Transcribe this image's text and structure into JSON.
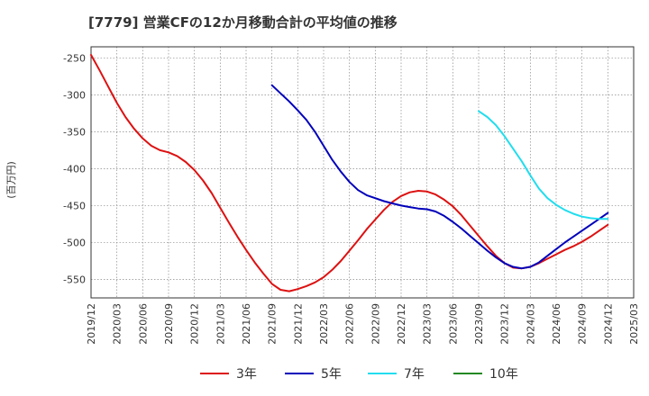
{
  "chart_data": {
    "type": "line",
    "title": "[7779]  営業CFの12か月移動合計の平均値の推移",
    "ylabel": "(百万円)",
    "xlabel": "",
    "ylim": [
      -575,
      -235
    ],
    "yticks": [
      -250,
      -300,
      -350,
      -400,
      -450,
      -500,
      -550
    ],
    "xticks": [
      "2019/12",
      "2020/03",
      "2020/06",
      "2020/09",
      "2020/12",
      "2021/03",
      "2021/06",
      "2021/09",
      "2021/12",
      "2022/03",
      "2022/06",
      "2022/09",
      "2022/12",
      "2023/03",
      "2023/06",
      "2023/09",
      "2023/12",
      "2024/03",
      "2024/06",
      "2024/09",
      "2024/12",
      "2025/03"
    ],
    "grid": true,
    "legend_position": "bottom",
    "series": [
      {
        "name": "3年",
        "color": "#dd1111",
        "x": [
          "2019/12",
          "2020/01",
          "2020/02",
          "2020/03",
          "2020/04",
          "2020/05",
          "2020/06",
          "2020/07",
          "2020/08",
          "2020/09",
          "2020/10",
          "2020/11",
          "2020/12",
          "2021/01",
          "2021/02",
          "2021/03",
          "2021/04",
          "2021/05",
          "2021/06",
          "2021/07",
          "2021/08",
          "2021/09",
          "2021/10",
          "2021/11",
          "2021/12",
          "2022/01",
          "2022/02",
          "2022/03",
          "2022/04",
          "2022/05",
          "2022/06",
          "2022/07",
          "2022/08",
          "2022/09",
          "2022/10",
          "2022/11",
          "2022/12",
          "2023/01",
          "2023/02",
          "2023/03",
          "2023/04",
          "2023/05",
          "2023/06",
          "2023/07",
          "2023/08",
          "2023/09",
          "2023/10",
          "2023/11",
          "2023/12",
          "2024/01",
          "2024/02",
          "2024/03",
          "2024/04",
          "2024/05",
          "2024/06",
          "2024/07",
          "2024/08",
          "2024/09",
          "2024/10",
          "2024/11",
          "2024/12"
        ],
        "values": [
          -246,
          -267,
          -289,
          -311,
          -330,
          -346,
          -359,
          -369,
          -375,
          -378,
          -383,
          -391,
          -402,
          -416,
          -433,
          -453,
          -473,
          -492,
          -510,
          -527,
          -542,
          -556,
          -564,
          -566,
          -563,
          -559,
          -554,
          -547,
          -537,
          -525,
          -511,
          -497,
          -482,
          -469,
          -456,
          -445,
          -437,
          -432,
          -430,
          -431,
          -435,
          -442,
          -451,
          -463,
          -477,
          -491,
          -505,
          -518,
          -528,
          -534,
          -535,
          -533,
          -528,
          -522,
          -516,
          -510,
          -505,
          -499,
          -492,
          -484,
          -476
        ]
      },
      {
        "name": "5年",
        "color": "#0000bb",
        "x": [
          "2021/09",
          "2021/10",
          "2021/11",
          "2021/12",
          "2022/01",
          "2022/02",
          "2022/03",
          "2022/04",
          "2022/05",
          "2022/06",
          "2022/07",
          "2022/08",
          "2022/09",
          "2022/10",
          "2022/11",
          "2022/12",
          "2023/01",
          "2023/02",
          "2023/03",
          "2023/04",
          "2023/05",
          "2023/06",
          "2023/07",
          "2023/08",
          "2023/09",
          "2023/10",
          "2023/11",
          "2023/12",
          "2024/01",
          "2024/02",
          "2024/03",
          "2024/04",
          "2024/05",
          "2024/06",
          "2024/07",
          "2024/08",
          "2024/09",
          "2024/10",
          "2024/11",
          "2024/12"
        ],
        "values": [
          -287,
          -298,
          -309,
          -321,
          -334,
          -350,
          -369,
          -388,
          -404,
          -418,
          -429,
          -436,
          -440,
          -444,
          -447,
          -450,
          -452,
          -454,
          -455,
          -458,
          -464,
          -472,
          -481,
          -491,
          -501,
          -511,
          -520,
          -528,
          -533,
          -535,
          -533,
          -527,
          -518,
          -509,
          -500,
          -492,
          -484,
          -476,
          -468,
          -460
        ]
      },
      {
        "name": "7年",
        "color": "#22ddee",
        "x": [
          "2023/09",
          "2023/10",
          "2023/11",
          "2023/12",
          "2024/01",
          "2024/02",
          "2024/03",
          "2024/04",
          "2024/05",
          "2024/06",
          "2024/07",
          "2024/08",
          "2024/09",
          "2024/10",
          "2024/11",
          "2024/12"
        ],
        "values": [
          -322,
          -330,
          -341,
          -356,
          -373,
          -390,
          -409,
          -427,
          -440,
          -449,
          -456,
          -461,
          -465,
          -467,
          -468,
          -468
        ]
      },
      {
        "name": "10年",
        "color": "#228822",
        "x": [],
        "values": []
      }
    ]
  }
}
